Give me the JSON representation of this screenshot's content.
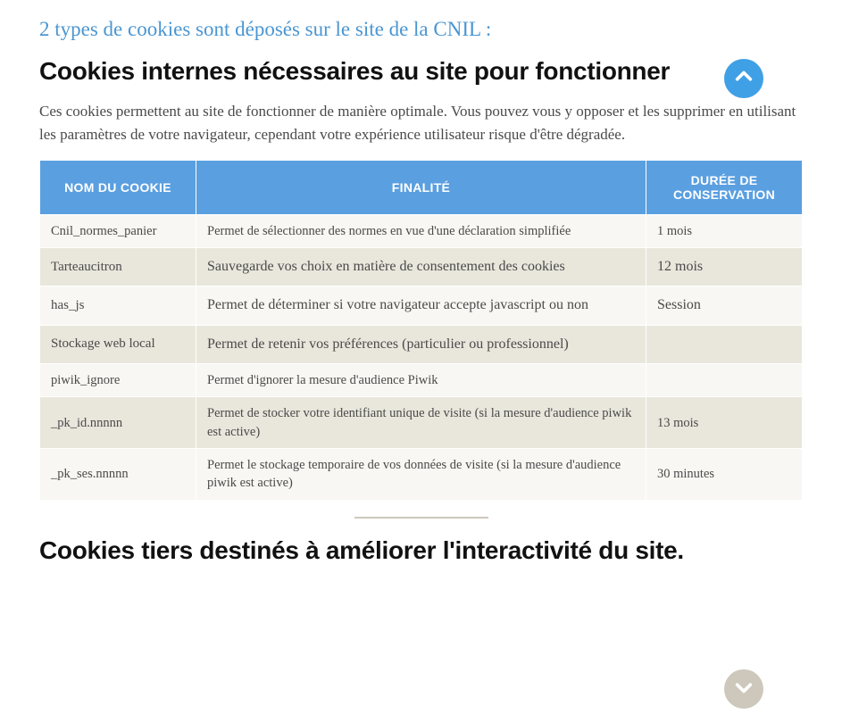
{
  "section_title": "2 types de cookies sont déposés sur le site de la CNIL :",
  "subsection1": {
    "title": "Cookies internes nécessaires au site pour fonctionner",
    "intro": "Ces cookies permettent au site de fonctionner de manière optimale. Vous pouvez vous y opposer et les supprimer en utilisant les paramètres de votre navigateur, cependant votre expérience utilisateur risque d'être dégradée."
  },
  "subsection2": {
    "title": "Cookies tiers destinés à améliorer l'interactivité du site."
  },
  "table": {
    "headers": {
      "name": "NOM DU COOKIE",
      "purpose": "FINALITÉ",
      "duration": "DURÉE DE CONSERVATION"
    },
    "rows": [
      {
        "name": "Cnil_normes_panier",
        "purpose": "Permet de sélectionner des normes en vue d'une déclaration simplifiée",
        "duration": "1 mois",
        "cls": "norm small"
      },
      {
        "name": "Tarteaucitron",
        "purpose": "Sauvegarde vos choix en matière de  consentement des cookies",
        "duration": "12 mois",
        "cls": "alt"
      },
      {
        "name": "has_js",
        "purpose": "Permet de déterminer si votre navigateur accepte javascript ou non",
        "duration": "Session",
        "cls": "norm"
      },
      {
        "name": "Stockage web local",
        "purpose": "Permet de retenir vos préférences (particulier ou professionnel)",
        "duration": "",
        "cls": "alt"
      },
      {
        "name": "piwik_ignore",
        "purpose": "Permet d'ignorer la mesure d'audience Piwik",
        "duration": "",
        "cls": "norm small"
      },
      {
        "name": "_pk_id.nnnnn",
        "purpose": "Permet de stocker votre identifiant unique de visite (si la mesure d'audience piwik est active)",
        "duration": "13 mois",
        "cls": "alt small"
      },
      {
        "name": "_pk_ses.nnnnn",
        "purpose": "Permet le stockage temporaire de vos données de visite (si la mesure d'audience piwik est active)",
        "duration": "30 minutes",
        "cls": "norm small"
      }
    ]
  },
  "colors": {
    "accent_blue": "#4a96d2",
    "header_blue": "#5a9fe0",
    "row_alt": "#e9e6dc",
    "row_norm": "#f8f7f3",
    "scroll_up": "#3fa0e6",
    "scroll_down": "#cdc8bb"
  }
}
